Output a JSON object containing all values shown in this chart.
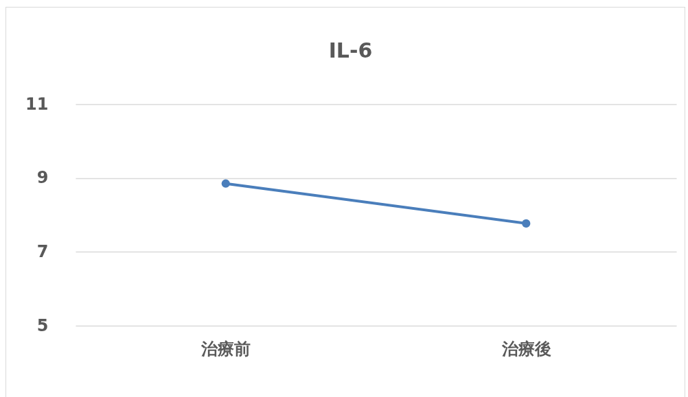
{
  "chart_data": {
    "type": "line",
    "title": "IL-6",
    "categories": [
      "治療前",
      "治療後"
    ],
    "series": [
      {
        "color": "#4a7ebb",
        "values": [
          8.85,
          7.77
        ]
      }
    ],
    "ylim": [
      5,
      11
    ],
    "yticks": [
      5,
      7,
      9,
      11
    ],
    "grid": "y",
    "legend": false,
    "marker": "circle",
    "line_style": "solid"
  }
}
